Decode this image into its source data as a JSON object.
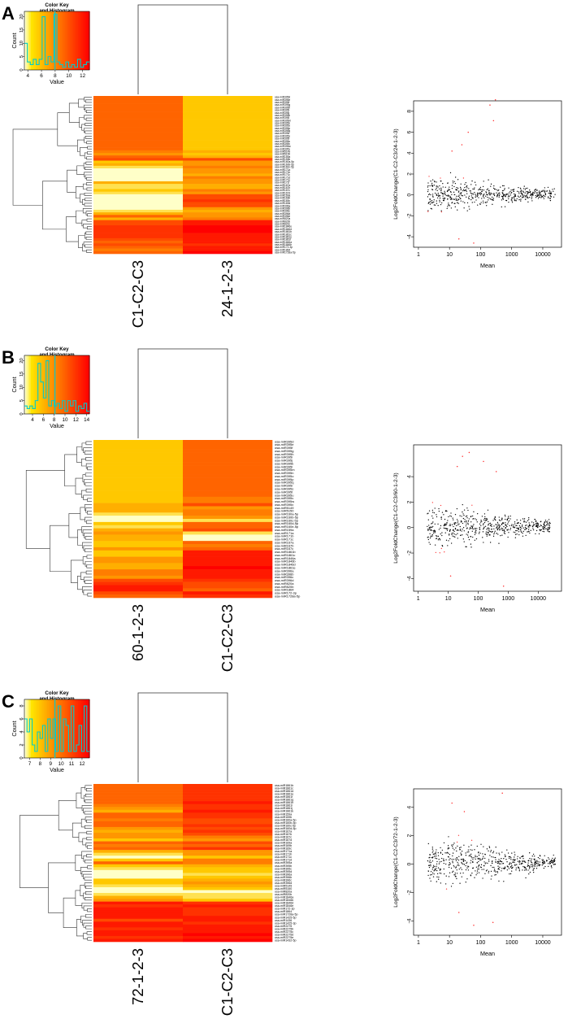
{
  "palette": {
    "red": "#ff0000",
    "yellow": "#ffff00",
    "pale": "#fffff0",
    "hist": "#00cccc",
    "mean": "#00cccc",
    "dot": "#000000",
    "sig": "#ff3030"
  },
  "panels": [
    {
      "letter": "A",
      "color_key": {
        "title": "Color Key\nand Histogram",
        "xlabel": "Value",
        "ylabel": "Count",
        "x_ticks": [
          "4",
          "6",
          "8",
          "10",
          "12"
        ],
        "x_range": [
          3.5,
          13
        ],
        "y_ticks": [
          "0",
          "5",
          "10",
          "15",
          "20"
        ],
        "y_max": 22,
        "hist": [
          10,
          3,
          2,
          4,
          2,
          4,
          20,
          2,
          5,
          3,
          21,
          3,
          2,
          1,
          3,
          1,
          2,
          1,
          4,
          1,
          2,
          3
        ]
      },
      "heatmap": {
        "columns": [
          "C1-C2-C3",
          "24-1-2-3"
        ],
        "rows": [
          "osa-miR395d",
          "osa-miR395e",
          "osa-miR395f",
          "osa-miR395g",
          "osa-miR395h",
          "osa-miR395i",
          "osa-miR395j",
          "osa-miR395k",
          "osa-miR395l",
          "osa-miR395m",
          "osa-miR395n",
          "osa-miR395o",
          "osa-miR395p",
          "osa-miR395q",
          "osa-miR395r",
          "osa-miR395s",
          "osa-miR395t",
          "osa-miR395u",
          "osa-miR395v",
          "osa-miR395w",
          "osa-miR395x",
          "osa-miR5149",
          "osa-miR5150",
          "osa-miR159a",
          "osa-miR159b",
          "osa-miR160a-5p",
          "osa-miR160b-5p",
          "osa-miR160c-5p",
          "osa-miR171a",
          "osa-miR171b",
          "osa-miR171c",
          "osa-miR171d",
          "osa-miR171e",
          "osa-miR171f",
          "osa-miR167a",
          "osa-miR167b",
          "osa-miR167c",
          "osa-miR167d",
          "osa-miR169a",
          "osa-miR169b",
          "osa-miR169c",
          "osa-miR169d",
          "osa-miR396a",
          "osa-miR396b",
          "osa-miR396c",
          "osa-miR396d",
          "osa-miR396e",
          "osa-miR820a",
          "osa-miR820b",
          "osa-miR820c",
          "osa-miR1846e",
          "osa-miR1846d",
          "osa-miR1861b",
          "osa-miR1861c",
          "osa-miR1861e",
          "osa-miR1861f",
          "osa-miR1846a",
          "osa-miR1846b",
          "osa-miR172-3p",
          "osa-miR1864",
          "osa-miR1728a-5p"
        ],
        "values": [
          [
            7,
            3
          ],
          [
            7,
            3
          ],
          [
            7,
            3
          ],
          [
            7,
            3
          ],
          [
            7,
            3
          ],
          [
            7,
            3
          ],
          [
            7,
            3
          ],
          [
            7,
            3
          ],
          [
            7,
            3
          ],
          [
            7,
            3
          ],
          [
            7,
            3
          ],
          [
            7,
            3
          ],
          [
            7,
            3
          ],
          [
            7,
            3
          ],
          [
            7,
            3
          ],
          [
            7,
            3
          ],
          [
            7,
            3
          ],
          [
            7,
            3
          ],
          [
            7,
            3
          ],
          [
            7,
            3
          ],
          [
            7,
            3
          ],
          [
            6,
            4
          ],
          [
            5,
            3
          ],
          [
            7,
            4
          ],
          [
            8,
            8
          ],
          [
            3,
            5
          ],
          [
            4,
            5
          ],
          [
            2,
            6
          ],
          [
            1,
            5
          ],
          [
            1,
            5
          ],
          [
            1,
            4
          ],
          [
            1,
            6
          ],
          [
            1,
            5
          ],
          [
            4,
            5
          ],
          [
            2,
            4
          ],
          [
            2,
            4
          ],
          [
            3,
            6
          ],
          [
            2,
            5
          ],
          [
            1,
            8
          ],
          [
            1,
            8
          ],
          [
            1,
            9
          ],
          [
            1,
            8
          ],
          [
            1,
            8
          ],
          [
            1,
            5
          ],
          [
            2,
            4
          ],
          [
            4,
            5
          ],
          [
            7,
            5
          ],
          [
            4,
            6
          ],
          [
            8,
            10
          ],
          [
            8,
            10
          ],
          [
            9,
            11
          ],
          [
            9,
            11
          ],
          [
            9,
            11
          ],
          [
            9,
            10
          ],
          [
            9,
            10
          ],
          [
            8,
            10
          ],
          [
            7,
            10
          ],
          [
            8,
            9
          ],
          [
            7,
            10
          ],
          [
            6,
            10
          ],
          [
            7,
            11
          ]
        ],
        "dendrogram": "lr"
      },
      "ma_plot": {
        "xlabel": "Mean",
        "ylabel": "Log2FoldChange(C1-C2-C3/24-1-2-3)",
        "x_ticks": [
          "1",
          "10",
          "100",
          "1000",
          "10000"
        ],
        "y_ticks": [
          "-4",
          "-2",
          "0",
          "2",
          "4",
          "6",
          "8"
        ],
        "x_range": [
          0.7,
          40000
        ],
        "y_range": [
          -5,
          9
        ],
        "spread": 1.4,
        "outliers": [
          [
            200,
            8.6
          ],
          [
            260,
            7.1
          ],
          [
            40,
            6.0
          ],
          [
            300,
            9.1
          ],
          [
            25,
            4.8
          ],
          [
            12,
            4.2
          ],
          [
            60,
            -4.6
          ],
          [
            20,
            -4.2
          ]
        ]
      }
    },
    {
      "letter": "B",
      "color_key": {
        "title": "Color Key\nand Histogram",
        "xlabel": "Value",
        "ylabel": "Count",
        "x_ticks": [
          "4",
          "6",
          "8",
          "10",
          "12",
          "14"
        ],
        "x_range": [
          2.5,
          14.5
        ],
        "y_ticks": [
          "0",
          "5",
          "10",
          "15",
          "20"
        ],
        "y_max": 22,
        "hist": [
          3,
          2,
          3,
          2,
          5,
          19,
          12,
          6,
          20,
          3,
          5,
          3,
          4,
          2,
          5,
          1,
          5,
          3,
          5,
          1,
          3,
          2,
          4,
          1
        ]
      },
      "heatmap": {
        "columns": [
          "60-1-2-3",
          "C1-C2-C3"
        ],
        "rows": [
          "osa-miR395d",
          "osa-miR395e",
          "osa-miR395f",
          "osa-miR395g",
          "osa-miR395h",
          "osa-miR395i",
          "osa-miR395j",
          "osa-miR395k",
          "osa-miR395l",
          "osa-miR395m",
          "osa-miR395n",
          "osa-miR395o",
          "osa-miR395p",
          "osa-miR395q",
          "osa-miR395r",
          "osa-miR395s",
          "osa-miR395t",
          "osa-miR395u",
          "osa-miR395v",
          "osa-miR395w",
          "osa-miR395x",
          "osa-miR5149",
          "osa-miR5150",
          "osa-miR160a-5p",
          "osa-miR160b-5p",
          "osa-miR160c-5p",
          "osa-miR160d-5p",
          "osa-miR160e-5p",
          "osa-miR159a",
          "osa-miR171a",
          "osa-miR171b",
          "osa-miR171c",
          "osa-miR167a",
          "osa-miR167b",
          "osa-miR167c",
          "osa-miR1861b",
          "osa-miR1861c",
          "osa-miR1846a",
          "osa-miR1846b",
          "osa-miR1846d",
          "osa-miR1861e",
          "osa-miR396a",
          "osa-miR396b",
          "osa-miR396c",
          "osa-miR396d",
          "osa-miR820a",
          "osa-miR820b",
          "osa-miR1864",
          "osa-miR172-3p",
          "osa-miR1728a-5p"
        ],
        "values": [
          [
            3,
            7
          ],
          [
            3,
            7
          ],
          [
            3,
            7
          ],
          [
            3,
            7
          ],
          [
            3,
            7
          ],
          [
            3,
            7
          ],
          [
            3,
            7
          ],
          [
            3,
            7
          ],
          [
            3,
            7
          ],
          [
            3,
            7
          ],
          [
            3,
            7
          ],
          [
            3,
            7
          ],
          [
            3,
            7
          ],
          [
            3,
            7
          ],
          [
            3,
            7
          ],
          [
            3,
            7
          ],
          [
            3,
            7
          ],
          [
            3,
            7
          ],
          [
            3,
            6
          ],
          [
            3,
            6
          ],
          [
            4,
            8
          ],
          [
            4,
            5
          ],
          [
            4,
            6
          ],
          [
            2,
            6
          ],
          [
            1,
            5
          ],
          [
            1,
            2
          ],
          [
            3,
            7
          ],
          [
            2,
            7
          ],
          [
            4,
            8
          ],
          [
            5,
            2
          ],
          [
            4,
            1
          ],
          [
            4,
            1
          ],
          [
            3,
            7
          ],
          [
            3,
            6
          ],
          [
            5,
            7
          ],
          [
            3,
            10
          ],
          [
            3,
            10
          ],
          [
            5,
            10
          ],
          [
            5,
            10
          ],
          [
            4,
            10
          ],
          [
            4,
            11
          ],
          [
            6,
            10
          ],
          [
            6,
            10
          ],
          [
            5,
            10
          ],
          [
            8,
            9
          ],
          [
            9,
            8
          ],
          [
            10,
            8
          ],
          [
            10,
            7
          ],
          [
            8,
            10
          ],
          [
            7,
            9
          ]
        ],
        "dendrogram": "lr"
      },
      "ma_plot": {
        "xlabel": "Mean",
        "ylabel": "Log2FoldChange(C1-C2-C3/60-1-2-3)",
        "x_ticks": [
          "1",
          "10",
          "100",
          "1000",
          "10000"
        ],
        "y_ticks": [
          "-4",
          "-2",
          "0",
          "2",
          "4"
        ],
        "x_range": [
          0.7,
          60000
        ],
        "y_range": [
          -5,
          6.5
        ],
        "spread": 1.5,
        "outliers": [
          [
            30,
            5.6
          ],
          [
            50,
            5.9
          ],
          [
            20,
            4.8
          ],
          [
            12,
            -3.8
          ],
          [
            700,
            -4.6
          ],
          [
            400,
            4.4
          ],
          [
            150,
            5.2
          ]
        ]
      }
    },
    {
      "letter": "C",
      "color_key": {
        "title": "Color Key\nand Histogram",
        "xlabel": "Value",
        "ylabel": "Count",
        "x_ticks": [
          "7",
          "8",
          "9",
          "10",
          "11",
          "12"
        ],
        "x_range": [
          6.5,
          12.7
        ],
        "y_ticks": [
          "0",
          "2",
          "4",
          "6",
          "8"
        ],
        "y_max": 9,
        "hist": [
          6,
          4,
          6,
          2,
          1,
          4,
          3,
          5,
          1,
          6,
          3,
          6,
          1,
          8,
          1,
          6,
          5,
          1,
          8,
          1,
          2,
          5,
          1,
          8,
          1
        ]
      },
      "heatmap": {
        "columns": [
          "72-1-2-3",
          "C1-C2-C3"
        ],
        "rows": [
          "osa-miR1861b",
          "osa-miR1861c",
          "osa-miR1861d",
          "osa-miR1861e",
          "osa-miR1861f",
          "osa-miR1861g",
          "osa-miR1861h",
          "osa-miR1861i",
          "osa-miR1861j",
          "osa-miR1861k",
          "osa-miR159a",
          "osa-miR159b",
          "osa-miR160a-5p",
          "osa-miR160b-5p",
          "osa-miR160c-5p",
          "osa-miR160d-5p",
          "osa-miR167a",
          "osa-miR167b",
          "osa-miR167c",
          "osa-miR167d",
          "osa-miR169a",
          "osa-miR169b",
          "osa-miR169c",
          "osa-miR171a",
          "osa-miR171b",
          "osa-miR171c",
          "osa-miR171d",
          "osa-miR395a",
          "osa-miR395b",
          "osa-miR395c",
          "osa-miR395d",
          "osa-miR396a",
          "osa-miR396b",
          "osa-miR396c",
          "osa-miR396d",
          "osa-miR5149",
          "osa-miR5150",
          "osa-miR820a",
          "osa-miR820b",
          "osa-miR1846a",
          "osa-miR1846b",
          "osa-miR1846d",
          "osa-miR1846e",
          "osa-miR172-3p",
          "osa-miR1864",
          "osa-miR1728a-5p",
          "osa-miR1425-5p",
          "osa-miR1436",
          "osa-miR1425-3p",
          "osa-miR2275",
          "osa-miR2275b",
          "osa-miR2275c",
          "osa-miR2275d",
          "osa-miR2275e",
          "osa-miR1432-5p"
        ],
        "values": [
          [
            7,
            9
          ],
          [
            7,
            9
          ],
          [
            7,
            9
          ],
          [
            7,
            9
          ],
          [
            7,
            9
          ],
          [
            7,
            9
          ],
          [
            7,
            10
          ],
          [
            6,
            9
          ],
          [
            5,
            9
          ],
          [
            4,
            10
          ],
          [
            7,
            9
          ],
          [
            7,
            9
          ],
          [
            6,
            8
          ],
          [
            7,
            8
          ],
          [
            7,
            9
          ],
          [
            5,
            8
          ],
          [
            4,
            9
          ],
          [
            5,
            8
          ],
          [
            5,
            6
          ],
          [
            3,
            5
          ],
          [
            7,
            8
          ],
          [
            6,
            7
          ],
          [
            7,
            9
          ],
          [
            4,
            5
          ],
          [
            2,
            5
          ],
          [
            1,
            3
          ],
          [
            3,
            6
          ],
          [
            7,
            6
          ],
          [
            3,
            4
          ],
          [
            2,
            3
          ],
          [
            1,
            3
          ],
          [
            1,
            2
          ],
          [
            1,
            3
          ],
          [
            3,
            4
          ],
          [
            3,
            5
          ],
          [
            2,
            4
          ],
          [
            1,
            3
          ],
          [
            1,
            1
          ],
          [
            2,
            2
          ],
          [
            4,
            2
          ],
          [
            5,
            3
          ],
          [
            10,
            9
          ],
          [
            9,
            10
          ],
          [
            10,
            9
          ],
          [
            10,
            9
          ],
          [
            10,
            9
          ],
          [
            10,
            10
          ],
          [
            8,
            10
          ],
          [
            10,
            9
          ],
          [
            10,
            10
          ],
          [
            9,
            10
          ],
          [
            10,
            10
          ],
          [
            10,
            11
          ],
          [
            9,
            10
          ],
          [
            10,
            11
          ]
        ],
        "dendrogram": "rl"
      },
      "ma_plot": {
        "xlabel": "Mean",
        "ylabel": "Log2FoldChange(C1-C2-C3/72-1-2-3)",
        "x_ticks": [
          "1",
          "10",
          "100",
          "1000",
          "10000"
        ],
        "y_ticks": [
          "-4",
          "-2",
          "0",
          "2",
          "4"
        ],
        "x_range": [
          0.7,
          40000
        ],
        "y_range": [
          -5,
          5.3
        ],
        "spread": 1.4,
        "outliers": [
          [
            12,
            4.3
          ],
          [
            500,
            5.0
          ],
          [
            30,
            3.7
          ],
          [
            60,
            -4.3
          ],
          [
            250,
            -4.1
          ],
          [
            20,
            -3.4
          ]
        ]
      }
    }
  ]
}
